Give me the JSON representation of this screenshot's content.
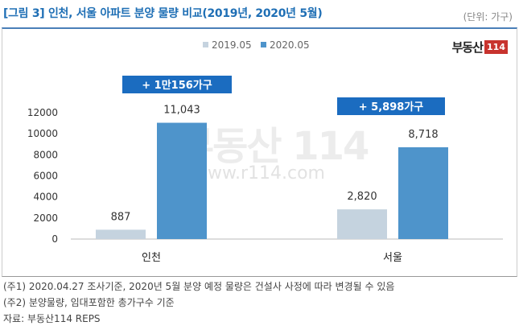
{
  "header": {
    "title": "[그림 3] 인천, 서울 아파트 분양 물량 비교(2019년, 2020년 5월)",
    "unit": "(단위: 가구)"
  },
  "logo": {
    "text": "부동산",
    "number": "114"
  },
  "watermark": {
    "logo": "부동산 114",
    "url": "www.r114.com"
  },
  "chart_data": {
    "type": "bar",
    "categories": [
      "인천",
      "서울"
    ],
    "series": [
      {
        "name": "2019.05",
        "values": [
          887,
          2820
        ],
        "labels": [
          "887",
          "2,820"
        ],
        "color": "#c5d3df"
      },
      {
        "name": "2020.05",
        "values": [
          11043,
          8718
        ],
        "labels": [
          "11,043",
          "8,718"
        ],
        "color": "#4e94cb"
      }
    ],
    "ylim": [
      0,
      12000
    ],
    "yticks": [
      0,
      2000,
      4000,
      6000,
      8000,
      10000,
      12000
    ],
    "legend": "top-center",
    "grid": false,
    "annotations": [
      "+ 1만156가구",
      "+ 5,898가구"
    ],
    "annotation_color": "#1b6cc0"
  },
  "notes": [
    "(주1) 2020.04.27 조사기준, 2020년 5월 분양 예정 물량은 건설사 사정에 따라 변경될 수 있음",
    "(주2) 분양물량, 임대포함한 총가구수 기준",
    "자료: 부동산114 REPS"
  ]
}
